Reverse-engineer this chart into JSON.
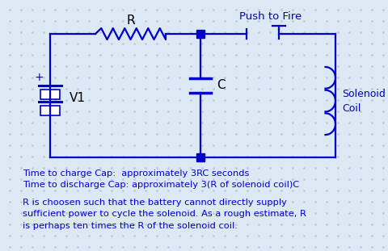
{
  "bg_color": "#dce9f5",
  "circuit_color": "#0000cc",
  "text_color": "#0000cc",
  "dot_color": "#b8c8d8",
  "fig_width": 4.8,
  "fig_height": 3.11,
  "title_text": "Push to Fire",
  "label_R": "R",
  "label_C": "C",
  "label_V1": "V1",
  "label_solenoid": [
    "Solenoid",
    "Coil"
  ],
  "line1": "Time to charge Cap:  approximately 3RC seconds",
  "line2": "Time to discharge Cap: approximately 3(R of solenoid coil)C",
  "line3": "R is choosen such that the battery cannot directly supply\nsufficient power to cycle the solenoid. As a rough estimate, R\nis perhaps ten times the R of the solenoid coil."
}
